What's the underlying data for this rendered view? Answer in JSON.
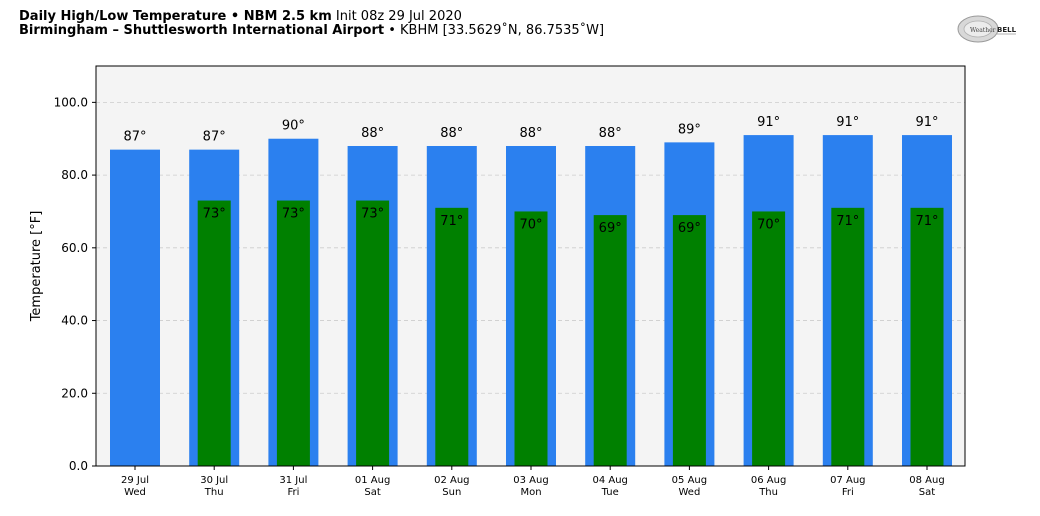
{
  "header": {
    "title_bold": "Daily High/Low Temperature • NBM 2.5 km",
    "init_text": "Init 08z 29 Jul 2020",
    "location_bold": "Birmingham – Shuttlesworth International Airport",
    "location_detail": "• KBHM [33.5629˚N, 86.7535˚W]"
  },
  "logo": {
    "text_weather": "Weather",
    "text_bell": "BELL"
  },
  "colors": {
    "high": "#2b80ef",
    "low": "#008000",
    "plot_bg": "#f4f4f4",
    "grid": "#cccccc"
  },
  "chart_data": {
    "type": "bar",
    "title": "Daily High/Low Temperature • NBM 2.5 km",
    "ylabel": "Temperature [°F]",
    "xlabel": "",
    "ylim": [
      0,
      110
    ],
    "yticks": [
      "0.0",
      "20.0",
      "40.0",
      "60.0",
      "80.0",
      "100.0"
    ],
    "ytick_values": [
      0,
      20,
      40,
      60,
      80,
      100
    ],
    "grid": true,
    "categories": [
      "29 Jul",
      "30 Jul",
      "31 Jul",
      "01 Aug",
      "02 Aug",
      "03 Aug",
      "04 Aug",
      "05 Aug",
      "06 Aug",
      "07 Aug",
      "08 Aug"
    ],
    "weekdays": [
      "Wed",
      "Thu",
      "Fri",
      "Sat",
      "Sun",
      "Mon",
      "Tue",
      "Wed",
      "Thu",
      "Fri",
      "Sat"
    ],
    "series": [
      {
        "key": "high",
        "values": [
          87,
          87,
          90,
          88,
          88,
          88,
          88,
          89,
          91,
          91,
          91
        ],
        "labels": [
          "87°",
          "87°",
          "90°",
          "88°",
          "88°",
          "88°",
          "88°",
          "89°",
          "91°",
          "91°",
          "91°"
        ]
      },
      {
        "key": "low",
        "values": [
          null,
          73,
          73,
          73,
          71,
          70,
          69,
          69,
          70,
          71,
          71
        ],
        "labels": [
          "",
          "73°",
          "73°",
          "73°",
          "71°",
          "70°",
          "69°",
          "69°",
          "70°",
          "71°",
          "71°"
        ]
      }
    ]
  }
}
